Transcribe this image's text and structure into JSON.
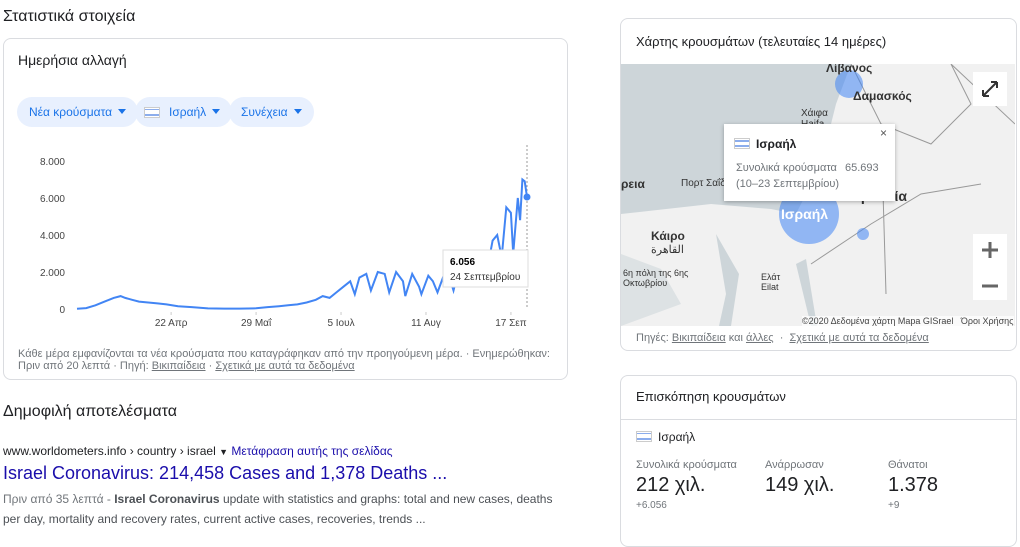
{
  "heading": "Στατιστικά στοιχεία",
  "daily": {
    "title": "Ημερήσια αλλαγή",
    "chips": [
      "Νέα κρούσματα",
      "Ισραήλ",
      "Συνέχεια"
    ],
    "note": "Κάθε μέρα εμφανίζονται τα νέα κρούσματα που καταγράφηκαν από την προηγούμενη μέρα. · Ενημερώθηκαν: Πριν από 20 λεπτά · Πηγή:",
    "source": "Βικιπαίδεια",
    "separator": "·",
    "about": "Σχετικά με αυτά τα δεδομένα"
  },
  "chart_data": {
    "type": "line",
    "color": "#4285f4",
    "x": [
      "03-12",
      "03-16",
      "03-20",
      "03-24",
      "03-28",
      "03-31",
      "04-02",
      "04-05",
      "04-08",
      "04-12",
      "04-16",
      "04-20",
      "04-25",
      "05-01",
      "05-08",
      "05-15",
      "05-22",
      "05-29",
      "06-03",
      "06-08",
      "06-12",
      "06-16",
      "06-20",
      "06-24",
      "06-27",
      "06-30",
      "07-03",
      "07-06",
      "07-09",
      "07-11",
      "07-13",
      "07-16",
      "07-18",
      "07-21",
      "07-24",
      "07-26",
      "07-29",
      "08-01",
      "08-02",
      "08-05",
      "08-08",
      "08-09",
      "08-12",
      "08-14",
      "08-16",
      "08-19",
      "08-22",
      "08-23",
      "08-26",
      "08-29",
      "08-30",
      "09-02",
      "09-05",
      "09-06",
      "09-09",
      "09-11",
      "09-13",
      "09-15",
      "09-17",
      "09-18",
      "09-20",
      "09-21",
      "09-22",
      "09-23",
      "09-24"
    ],
    "values": [
      10,
      50,
      200,
      400,
      600,
      700,
      600,
      500,
      400,
      350,
      300,
      250,
      150,
      100,
      30,
      20,
      20,
      40,
      100,
      150,
      200,
      250,
      350,
      500,
      700,
      600,
      900,
      1200,
      1500,
      800,
      1700,
      1900,
      1000,
      2000,
      1900,
      900,
      2000,
      1500,
      700,
      1900,
      1200,
      800,
      1800,
      1500,
      900,
      1900,
      1400,
      1000,
      2500,
      1800,
      1200,
      3000,
      2300,
      1700,
      3700,
      4000,
      2800,
      5500,
      5200,
      3000,
      6000,
      4800,
      7000,
      6900,
      6056
    ],
    "xlim": [
      "03-12",
      "09-24"
    ],
    "xticks": [
      {
        "value": "04-22",
        "label": "22 Απρ"
      },
      {
        "value": "05-29",
        "label": "29 Μαΐ"
      },
      {
        "value": "07-05",
        "label": "5 Ιουλ"
      },
      {
        "value": "08-11",
        "label": "11 Αυγ"
      },
      {
        "value": "09-17",
        "label": "17 Σεπ"
      }
    ],
    "ylim": [
      0,
      8000
    ],
    "yticks": [
      0,
      {
        "value": 2000,
        "label": "2.000"
      },
      {
        "value": 4000,
        "label": "4.000"
      },
      {
        "value": 6000,
        "label": "6.000"
      },
      {
        "value": 8000,
        "label": "8.000"
      }
    ],
    "grid": false,
    "tooltip": {
      "value_label": "6.056",
      "date": "24 Σεπτεμβρίου"
    }
  },
  "results": {
    "title": "Δημοφιλή αποτελέσματα",
    "url": "www.worldometers.info › country › israel",
    "translate": "Μετάφραση αυτής της σελίδας",
    "link": "Israel Coronavirus: 214,458 Cases and 1,378 Deaths ...",
    "snippet_age": "Πριν από 35 λεπτά -",
    "snippet_bold": "Israel Coronavirus",
    "snippet": "update with statistics and graphs: total and new cases, deaths per day, mortality and recovery rates, current active cases, recoveries, trends ..."
  },
  "map": {
    "title": "Χάρτης κρουσμάτων (τελευταίες 14 ημέρες)",
    "labels": [
      "Λίβανος",
      "Δαμασκός",
      "Χάιφα",
      "Haifa",
      "ρεια",
      "Πορτ Σαΐδ",
      "Κάιρο",
      "القاهرة",
      "6η πόλη της 6ης",
      "Οκτωβρίου",
      "Ισραήλ",
      "ρδανία",
      "Ελάτ",
      "Eilat"
    ],
    "popup": {
      "country": "Ισραήλ",
      "label": "Συνολικά κρούσματα",
      "value": "65.693",
      "period": "(10–23 Σεπτεμβρίου)"
    },
    "attribution": "©2020 Δεδομένα χάρτη Mapa GISrael",
    "terms": "Όροι Χρήσης",
    "sources_label": "Πηγές:",
    "source1": "Βικιπαίδεια",
    "and": "και",
    "source2": "άλλες",
    "separator": "·",
    "about": "Σχετικά με αυτά τα δεδομένα"
  },
  "overview": {
    "title": "Επισκόπηση κρουσμάτων",
    "country": "Ισραήλ",
    "stats": [
      {
        "label": "Συνολικά κρούσματα",
        "value": "212 χιλ.",
        "change": "+6.056"
      },
      {
        "label": "Ανάρρωσαν",
        "value": "149 χιλ."
      },
      {
        "label": "Θάνατοι",
        "value": "1.378",
        "change": "+9"
      }
    ]
  }
}
